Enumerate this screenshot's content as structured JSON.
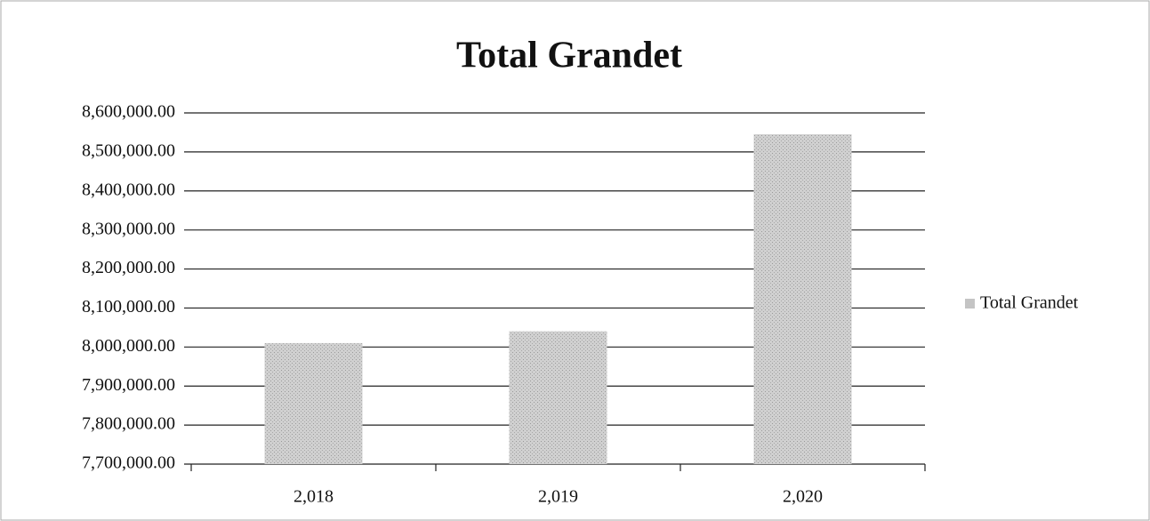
{
  "chart_data": {
    "type": "bar",
    "title": "Total Grandet",
    "categories": [
      "2,018",
      "2,019",
      "2,020"
    ],
    "series": [
      {
        "name": "Total Grandet",
        "color": "#c4c4c4",
        "values": [
          8010000,
          8040000,
          8545000
        ]
      }
    ],
    "ylim": [
      7700000,
      8600000
    ],
    "yticks": [
      {
        "value": 7700000,
        "label": "7,700,000.00"
      },
      {
        "value": 7800000,
        "label": "7,800,000.00"
      },
      {
        "value": 7900000,
        "label": "7,900,000.00"
      },
      {
        "value": 8000000,
        "label": "8,000,000.00"
      },
      {
        "value": 8100000,
        "label": "8,100,000.00"
      },
      {
        "value": 8200000,
        "label": "8,200,000.00"
      },
      {
        "value": 8300000,
        "label": "8,300,000.00"
      },
      {
        "value": 8400000,
        "label": "8,400,000.00"
      },
      {
        "value": 8500000,
        "label": "8,500,000.00"
      },
      {
        "value": 8600000,
        "label": "8,600,000.00"
      }
    ],
    "grid": true,
    "legend": "right"
  }
}
